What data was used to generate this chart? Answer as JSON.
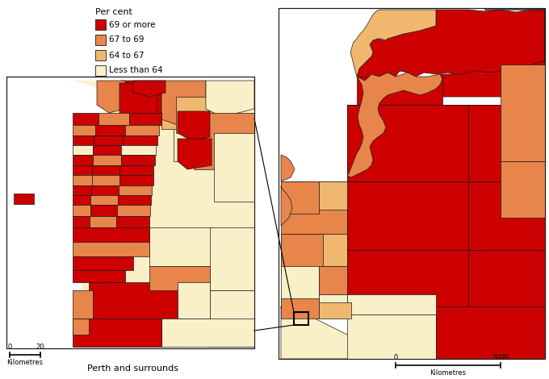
{
  "legend_title": "Per cent",
  "legend_items": [
    {
      "label": "69 or more",
      "color": "#cc0000"
    },
    {
      "label": "67 to 69",
      "color": "#e8854a"
    },
    {
      "label": "64 to 67",
      "color": "#f0b86e"
    },
    {
      "label": "Less than 64",
      "color": "#faf0c8"
    }
  ],
  "colors": {
    "red": "#cc0000",
    "orange": "#e8854a",
    "yellow": "#f0b86e",
    "cream": "#faf0c8",
    "white": "#ffffff",
    "border": "#1a1a1a",
    "bg": "#ffffff"
  },
  "inset_label": "Perth and surrounds",
  "inset_scale_value": "20",
  "inset_scale_label": "Kilometres",
  "main_scale_value": "1000",
  "main_scale_label": "Kilometres"
}
